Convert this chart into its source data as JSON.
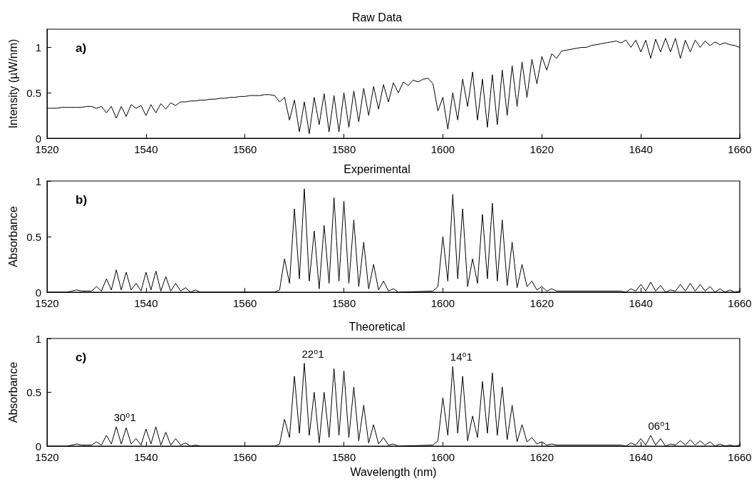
{
  "chart_data": [
    {
      "type": "line",
      "title": "Raw Data",
      "ylabel": "Intensity (µW/nm)",
      "annotations": [
        "a)"
      ],
      "xlim": [
        1520,
        1660
      ],
      "xticks": [
        1520,
        1540,
        1560,
        1580,
        1600,
        1620,
        1640,
        1660
      ],
      "ylim": [
        0,
        1.2
      ],
      "yticks": [
        0,
        0.5,
        1
      ],
      "grid": false,
      "series": [
        {
          "color": "#000000",
          "x": [
            1520,
            1521,
            1522,
            1523,
            1524,
            1525,
            1526,
            1527,
            1528,
            1529,
            1530,
            1531,
            1532,
            1533,
            1534,
            1535,
            1536,
            1537,
            1538,
            1539,
            1540,
            1541,
            1542,
            1543,
            1544,
            1545,
            1546,
            1547,
            1548,
            1549,
            1550,
            1551,
            1552,
            1553,
            1554,
            1555,
            1556,
            1557,
            1558,
            1559,
            1560,
            1561,
            1562,
            1563,
            1564,
            1565,
            1566,
            1567,
            1568,
            1569,
            1570,
            1571,
            1572,
            1573,
            1574,
            1575,
            1576,
            1577,
            1578,
            1579,
            1580,
            1581,
            1582,
            1583,
            1584,
            1585,
            1586,
            1587,
            1588,
            1589,
            1590,
            1591,
            1592,
            1593,
            1594,
            1595,
            1596,
            1597,
            1598,
            1599,
            1600,
            1601,
            1602,
            1603,
            1604,
            1605,
            1606,
            1607,
            1608,
            1609,
            1610,
            1611,
            1612,
            1613,
            1614,
            1615,
            1616,
            1617,
            1618,
            1619,
            1620,
            1621,
            1622,
            1623,
            1624,
            1625,
            1626,
            1627,
            1628,
            1629,
            1630,
            1631,
            1632,
            1633,
            1634,
            1635,
            1636,
            1637,
            1638,
            1639,
            1640,
            1641,
            1642,
            1643,
            1644,
            1645,
            1646,
            1647,
            1648,
            1649,
            1650,
            1651,
            1652,
            1653,
            1654,
            1655,
            1656,
            1657,
            1658,
            1659,
            1660
          ],
          "values": [
            0.33,
            0.33,
            0.33,
            0.34,
            0.34,
            0.34,
            0.34,
            0.34,
            0.35,
            0.35,
            0.33,
            0.35,
            0.28,
            0.35,
            0.22,
            0.35,
            0.24,
            0.37,
            0.33,
            0.36,
            0.25,
            0.37,
            0.28,
            0.38,
            0.32,
            0.39,
            0.36,
            0.4,
            0.4,
            0.41,
            0.41,
            0.42,
            0.42,
            0.43,
            0.43,
            0.44,
            0.44,
            0.45,
            0.45,
            0.46,
            0.46,
            0.47,
            0.47,
            0.47,
            0.48,
            0.48,
            0.47,
            0.4,
            0.45,
            0.2,
            0.42,
            0.07,
            0.4,
            0.05,
            0.45,
            0.15,
            0.49,
            0.07,
            0.47,
            0.07,
            0.5,
            0.12,
            0.52,
            0.18,
            0.55,
            0.25,
            0.57,
            0.32,
            0.59,
            0.4,
            0.61,
            0.5,
            0.62,
            0.58,
            0.64,
            0.62,
            0.65,
            0.66,
            0.6,
            0.3,
            0.45,
            0.1,
            0.5,
            0.2,
            0.65,
            0.35,
            0.73,
            0.2,
            0.65,
            0.12,
            0.7,
            0.15,
            0.75,
            0.25,
            0.8,
            0.35,
            0.84,
            0.45,
            0.87,
            0.6,
            0.9,
            0.75,
            0.93,
            0.88,
            0.96,
            0.97,
            0.98,
            0.99,
            1.0,
            1.0,
            1.02,
            1.03,
            1.04,
            1.05,
            1.06,
            1.07,
            1.05,
            1.08,
            1.0,
            1.08,
            0.95,
            1.08,
            0.88,
            1.09,
            0.95,
            1.1,
            0.95,
            1.1,
            0.88,
            1.08,
            0.95,
            1.08,
            1.0,
            1.07,
            1.02,
            1.06,
            1.03,
            1.05,
            1.03,
            1.02,
            1.0
          ]
        }
      ]
    },
    {
      "type": "line",
      "title": "Experimental",
      "ylabel": "Absorbance",
      "annotations": [
        "b)"
      ],
      "xlim": [
        1520,
        1660
      ],
      "xticks": [
        1520,
        1540,
        1560,
        1580,
        1600,
        1620,
        1640,
        1660
      ],
      "ylim": [
        0,
        1
      ],
      "yticks": [
        0,
        0.5,
        1
      ],
      "grid": false,
      "series": [
        {
          "color": "#000000",
          "x": [
            1520,
            1524,
            1525,
            1526,
            1527,
            1528,
            1529,
            1530,
            1531,
            1532,
            1533,
            1534,
            1535,
            1536,
            1537,
            1538,
            1539,
            1540,
            1541,
            1542,
            1543,
            1544,
            1545,
            1546,
            1547,
            1548,
            1549,
            1550,
            1551,
            1566,
            1567,
            1568,
            1569,
            1570,
            1571,
            1572,
            1573,
            1574,
            1575,
            1576,
            1577,
            1578,
            1579,
            1580,
            1581,
            1582,
            1583,
            1584,
            1585,
            1586,
            1587,
            1588,
            1589,
            1590,
            1591,
            1598,
            1599,
            1600,
            1601,
            1602,
            1603,
            1604,
            1605,
            1606,
            1607,
            1608,
            1609,
            1610,
            1611,
            1612,
            1613,
            1614,
            1615,
            1616,
            1617,
            1618,
            1619,
            1620,
            1621,
            1622,
            1623,
            1636,
            1637,
            1638,
            1639,
            1640,
            1641,
            1642,
            1643,
            1644,
            1645,
            1646,
            1647,
            1648,
            1649,
            1650,
            1651,
            1652,
            1653,
            1654,
            1655,
            1656,
            1657,
            1658,
            1659,
            1660
          ],
          "values": [
            0,
            0,
            0.01,
            0.02,
            0.01,
            0.01,
            0.01,
            0.05,
            0.01,
            0.12,
            0.02,
            0.2,
            0.02,
            0.18,
            0.02,
            0.08,
            0.01,
            0.18,
            0.02,
            0.19,
            0.01,
            0.14,
            0.01,
            0.08,
            0.01,
            0.04,
            0,
            0.02,
            0,
            0,
            0.02,
            0.3,
            0.08,
            0.75,
            0.12,
            0.93,
            0.1,
            0.55,
            0.03,
            0.6,
            0.08,
            0.85,
            0.1,
            0.82,
            0.08,
            0.65,
            0.05,
            0.45,
            0.03,
            0.25,
            0.02,
            0.1,
            0.01,
            0.03,
            0,
            0.01,
            0.05,
            0.5,
            0.1,
            0.88,
            0.12,
            0.75,
            0.05,
            0.3,
            0.08,
            0.7,
            0.12,
            0.8,
            0.1,
            0.65,
            0.06,
            0.45,
            0.04,
            0.25,
            0.05,
            0.1,
            0.02,
            0.05,
            0.01,
            0.03,
            0.01,
            0.01,
            0,
            0.03,
            0.01,
            0.07,
            0.01,
            0.09,
            0.01,
            0.06,
            0,
            0.02,
            0.01,
            0.07,
            0.01,
            0.08,
            0.01,
            0.07,
            0.01,
            0.05,
            0,
            0.03,
            0,
            0.02,
            0,
            0.01
          ]
        }
      ]
    },
    {
      "type": "line",
      "title": "Theoretical",
      "xlabel": "Wavelength (nm)",
      "ylabel": "Absorbance",
      "annotations": [
        "c)",
        {
          "text": "30⁰1",
          "x": 1534,
          "y": 0.18
        },
        {
          "text": "22⁰1",
          "x": 1572,
          "y": 0.77
        },
        {
          "text": "14⁰1",
          "x": 1602,
          "y": 0.74
        },
        {
          "text": "06⁰1",
          "x": 1642,
          "y": 0.1
        }
      ],
      "xlim": [
        1520,
        1660
      ],
      "xticks": [
        1520,
        1540,
        1560,
        1580,
        1600,
        1620,
        1640,
        1660
      ],
      "ylim": [
        0,
        1
      ],
      "yticks": [
        0,
        0.5,
        1
      ],
      "grid": false,
      "series": [
        {
          "color": "#000000",
          "x": [
            1520,
            1524,
            1525,
            1526,
            1527,
            1528,
            1529,
            1530,
            1531,
            1532,
            1533,
            1534,
            1535,
            1536,
            1537,
            1538,
            1539,
            1540,
            1541,
            1542,
            1543,
            1544,
            1545,
            1546,
            1547,
            1548,
            1549,
            1550,
            1551,
            1566,
            1567,
            1568,
            1569,
            1570,
            1571,
            1572,
            1573,
            1574,
            1575,
            1576,
            1577,
            1578,
            1579,
            1580,
            1581,
            1582,
            1583,
            1584,
            1585,
            1586,
            1587,
            1588,
            1589,
            1590,
            1591,
            1598,
            1599,
            1600,
            1601,
            1602,
            1603,
            1604,
            1605,
            1606,
            1607,
            1608,
            1609,
            1610,
            1611,
            1612,
            1613,
            1614,
            1615,
            1616,
            1617,
            1618,
            1619,
            1620,
            1621,
            1622,
            1623,
            1636,
            1637,
            1638,
            1639,
            1640,
            1641,
            1642,
            1643,
            1644,
            1645,
            1646,
            1647,
            1648,
            1649,
            1650,
            1651,
            1652,
            1653,
            1654,
            1655,
            1656,
            1657,
            1658,
            1659,
            1660
          ],
          "values": [
            0,
            0,
            0.01,
            0.02,
            0.01,
            0.01,
            0.01,
            0.04,
            0.01,
            0.1,
            0.02,
            0.18,
            0.02,
            0.17,
            0.02,
            0.07,
            0.01,
            0.16,
            0.02,
            0.18,
            0.01,
            0.13,
            0.01,
            0.07,
            0.01,
            0.03,
            0,
            0.01,
            0,
            0,
            0.02,
            0.25,
            0.08,
            0.65,
            0.12,
            0.77,
            0.1,
            0.5,
            0.03,
            0.5,
            0.08,
            0.72,
            0.1,
            0.7,
            0.08,
            0.55,
            0.05,
            0.38,
            0.03,
            0.2,
            0.02,
            0.08,
            0.01,
            0.02,
            0,
            0.01,
            0.05,
            0.45,
            0.1,
            0.74,
            0.12,
            0.65,
            0.05,
            0.28,
            0.08,
            0.6,
            0.12,
            0.68,
            0.1,
            0.55,
            0.06,
            0.38,
            0.04,
            0.2,
            0.04,
            0.08,
            0.02,
            0.04,
            0.01,
            0.02,
            0.01,
            0.01,
            0,
            0.03,
            0.01,
            0.07,
            0.01,
            0.1,
            0.01,
            0.07,
            0,
            0.02,
            0.01,
            0.05,
            0.01,
            0.06,
            0.01,
            0.05,
            0.01,
            0.04,
            0,
            0.02,
            0,
            0.01,
            0,
            0.01
          ]
        }
      ]
    }
  ]
}
